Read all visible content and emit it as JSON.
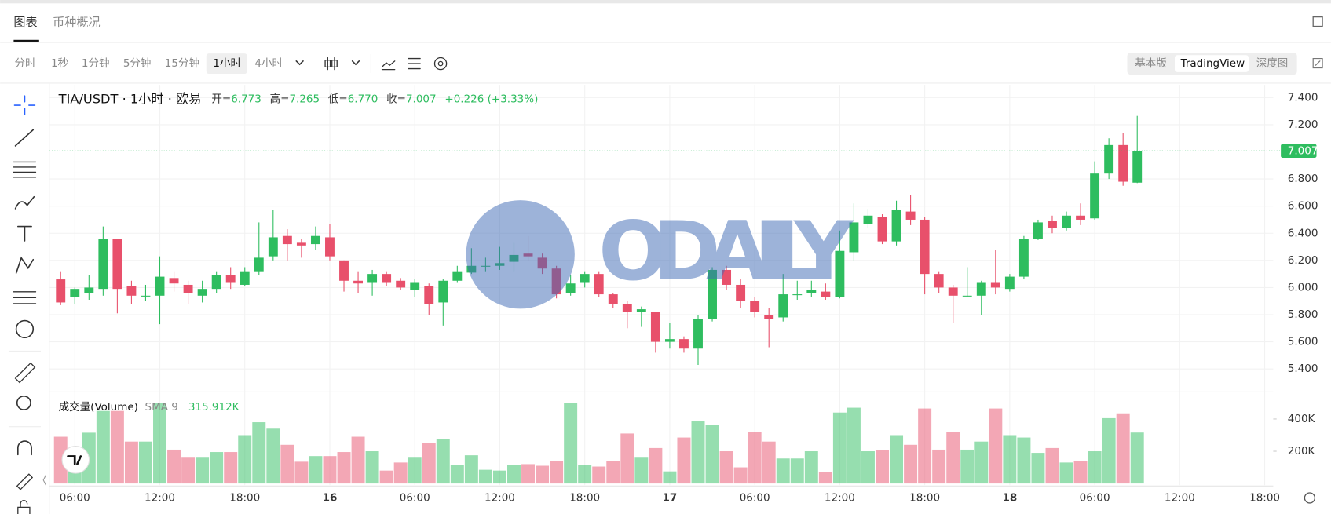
{
  "tabs": [
    "图表",
    "币种概况"
  ],
  "intervals": [
    "分时",
    "1秒",
    "1分钟",
    "5分钟",
    "15分钟",
    "1小时",
    "4小时"
  ],
  "views": [
    "基本版",
    "TradingView",
    "深度图"
  ],
  "watermark": "ODAILY",
  "chart_data": {
    "type": "candlestick",
    "title": "TIA/USDT · 1小时 · 欧易",
    "legend": [
      {
        "key": "开=",
        "value": "6.773"
      },
      {
        "key": "高=",
        "value": "7.265"
      },
      {
        "key": "低=",
        "value": "6.770"
      },
      {
        "key": "收=",
        "value": "7.007"
      }
    ],
    "change": "+0.226 (+3.33%)",
    "up_color": "#2ebd5f",
    "down_color": "#e8506b",
    "open": [
      6.06,
      5.93,
      5.96,
      5.99,
      6.36,
      6.01,
      5.94,
      5.94,
      6.07,
      6.02,
      5.94,
      5.99,
      6.09,
      6.02,
      6.12,
      6.23,
      6.38,
      6.33,
      6.32,
      6.37,
      6.2,
      6.05,
      6.04,
      6.1,
      6.05,
      5.98,
      6.01,
      5.89,
      6.05,
      6.11,
      6.16,
      6.16,
      6.19,
      6.25,
      6.22,
      6.14,
      5.96,
      6.04,
      6.1,
      5.95,
      5.88,
      5.82,
      5.82,
      5.6,
      5.62,
      5.55,
      5.77,
      6.13,
      6.02,
      5.9,
      5.8,
      5.78,
      5.95,
      5.96,
      5.97,
      5.93,
      6.26,
      6.47,
      6.52,
      6.34,
      6.56,
      6.5,
      6.1,
      6.0,
      5.94,
      5.94,
      6.04,
      5.99,
      6.08,
      6.36,
      6.49,
      6.44,
      6.53,
      6.51,
      6.84,
      7.05,
      6.773
    ],
    "high": [
      6.12,
      6.0,
      6.09,
      6.45,
      6.36,
      6.05,
      6.02,
      6.23,
      6.12,
      6.05,
      6.05,
      6.12,
      6.15,
      6.15,
      6.48,
      6.57,
      6.43,
      6.36,
      6.45,
      6.47,
      6.2,
      6.12,
      6.13,
      6.12,
      6.07,
      6.06,
      6.03,
      6.06,
      6.16,
      6.29,
      6.22,
      6.3,
      6.33,
      6.38,
      6.25,
      6.16,
      6.09,
      6.12,
      6.12,
      5.96,
      5.9,
      5.86,
      5.82,
      5.74,
      5.64,
      5.8,
      6.15,
      6.16,
      6.06,
      5.93,
      5.85,
      6.1,
      6.05,
      6.05,
      6.03,
      6.42,
      6.62,
      6.58,
      6.54,
      6.64,
      6.68,
      6.52,
      6.12,
      6.02,
      6.15,
      6.05,
      6.28,
      6.1,
      6.38,
      6.5,
      6.53,
      6.56,
      6.62,
      6.93,
      7.1,
      7.14,
      7.265
    ],
    "low": [
      5.87,
      5.88,
      5.91,
      5.94,
      5.81,
      5.88,
      5.9,
      5.73,
      5.97,
      5.88,
      5.89,
      5.96,
      5.99,
      6.01,
      6.09,
      6.2,
      6.2,
      6.22,
      6.28,
      6.2,
      5.97,
      5.96,
      5.94,
      6.01,
      5.98,
      5.93,
      5.8,
      5.72,
      6.04,
      6.1,
      6.12,
      6.13,
      6.12,
      6.2,
      6.1,
      5.92,
      5.94,
      6.0,
      5.93,
      5.85,
      5.7,
      5.71,
      5.52,
      5.55,
      5.52,
      5.43,
      5.75,
      5.98,
      5.85,
      5.78,
      5.56,
      5.75,
      5.91,
      5.93,
      5.91,
      5.92,
      6.2,
      6.44,
      6.32,
      6.31,
      6.46,
      5.95,
      5.96,
      5.74,
      5.93,
      5.8,
      5.95,
      5.97,
      6.06,
      6.35,
      6.4,
      6.42,
      6.46,
      6.5,
      6.8,
      6.75,
      6.77
    ],
    "close": [
      5.89,
      5.99,
      6.0,
      6.36,
      5.99,
      5.94,
      5.94,
      6.08,
      6.03,
      5.96,
      5.99,
      6.09,
      6.04,
      6.12,
      6.22,
      6.37,
      6.32,
      6.31,
      6.38,
      6.23,
      6.05,
      6.03,
      6.1,
      6.04,
      6.0,
      6.04,
      5.88,
      6.05,
      6.12,
      6.16,
      6.16,
      6.18,
      6.24,
      6.23,
      6.14,
      5.95,
      6.03,
      6.1,
      5.95,
      5.88,
      5.82,
      5.84,
      5.6,
      5.62,
      5.55,
      5.77,
      6.13,
      6.02,
      5.9,
      5.82,
      5.77,
      5.95,
      5.95,
      5.98,
      5.93,
      6.27,
      6.48,
      6.53,
      6.34,
      6.57,
      6.5,
      6.1,
      6.0,
      5.94,
      5.94,
      6.04,
      6.0,
      6.08,
      6.36,
      6.48,
      6.44,
      6.53,
      6.5,
      6.84,
      7.05,
      6.78,
      7.007
    ],
    "ylim": [
      5.275,
      7.494
    ],
    "yticks": [
      {
        "value": 7.4,
        "label": "7.400"
      },
      {
        "value": 7.2,
        "label": "7.200"
      },
      {
        "value": 6.8,
        "label": "6.800"
      },
      {
        "value": 6.6,
        "label": "6.600"
      },
      {
        "value": 6.4,
        "label": "6.400"
      },
      {
        "value": 6.2,
        "label": "6.200"
      },
      {
        "value": 6.0,
        "label": "6.000"
      },
      {
        "value": 5.8,
        "label": "5.800"
      },
      {
        "value": 5.6,
        "label": "5.600"
      },
      {
        "value": 5.4,
        "label": "5.400"
      }
    ],
    "xlim": [
      -0.8,
      85.6
    ],
    "xticks": [
      {
        "value": 1,
        "label": "06:00"
      },
      {
        "value": 7,
        "label": "12:00"
      },
      {
        "value": 13,
        "label": "18:00"
      },
      {
        "value": 19,
        "label": "16"
      },
      {
        "value": 25,
        "label": "06:00"
      },
      {
        "value": 31,
        "label": "12:00"
      },
      {
        "value": 37,
        "label": "18:00"
      },
      {
        "value": 43,
        "label": "17"
      },
      {
        "value": 49,
        "label": "06:00"
      },
      {
        "value": 55,
        "label": "12:00"
      },
      {
        "value": 61,
        "label": "18:00"
      },
      {
        "value": 67,
        "label": "18"
      },
      {
        "value": 73,
        "label": "06:00"
      },
      {
        "value": 79,
        "label": "12:00"
      },
      {
        "value": 85,
        "label": "18:00"
      }
    ],
    "volume": {
      "name": "成交量(Volume)",
      "indicator": "SMA 9",
      "last_label": "315.912K",
      "values": [
        290000,
        210000,
        315000,
        450000,
        450000,
        260000,
        260000,
        500000,
        210000,
        160000,
        160000,
        195000,
        195000,
        300000,
        380000,
        340000,
        240000,
        135000,
        170000,
        170000,
        195000,
        290000,
        200000,
        80000,
        130000,
        160000,
        250000,
        275000,
        115000,
        175000,
        85000,
        80000,
        115000,
        120000,
        110000,
        140000,
        500000,
        115000,
        105000,
        140000,
        310000,
        160000,
        220000,
        75000,
        285000,
        385000,
        365000,
        200000,
        100000,
        320000,
        260000,
        155000,
        155000,
        200000,
        70000,
        440000,
        470000,
        200000,
        205000,
        300000,
        240000,
        465000,
        210000,
        320000,
        210000,
        260000,
        465000,
        300000,
        285000,
        190000,
        220000,
        130000,
        140000,
        200000,
        405000,
        435000,
        315912
      ],
      "ylim": [
        0,
        552632
      ],
      "yticks": [
        {
          "value": 400000,
          "label": "400K"
        },
        {
          "value": 200000,
          "label": "200K"
        }
      ]
    }
  }
}
